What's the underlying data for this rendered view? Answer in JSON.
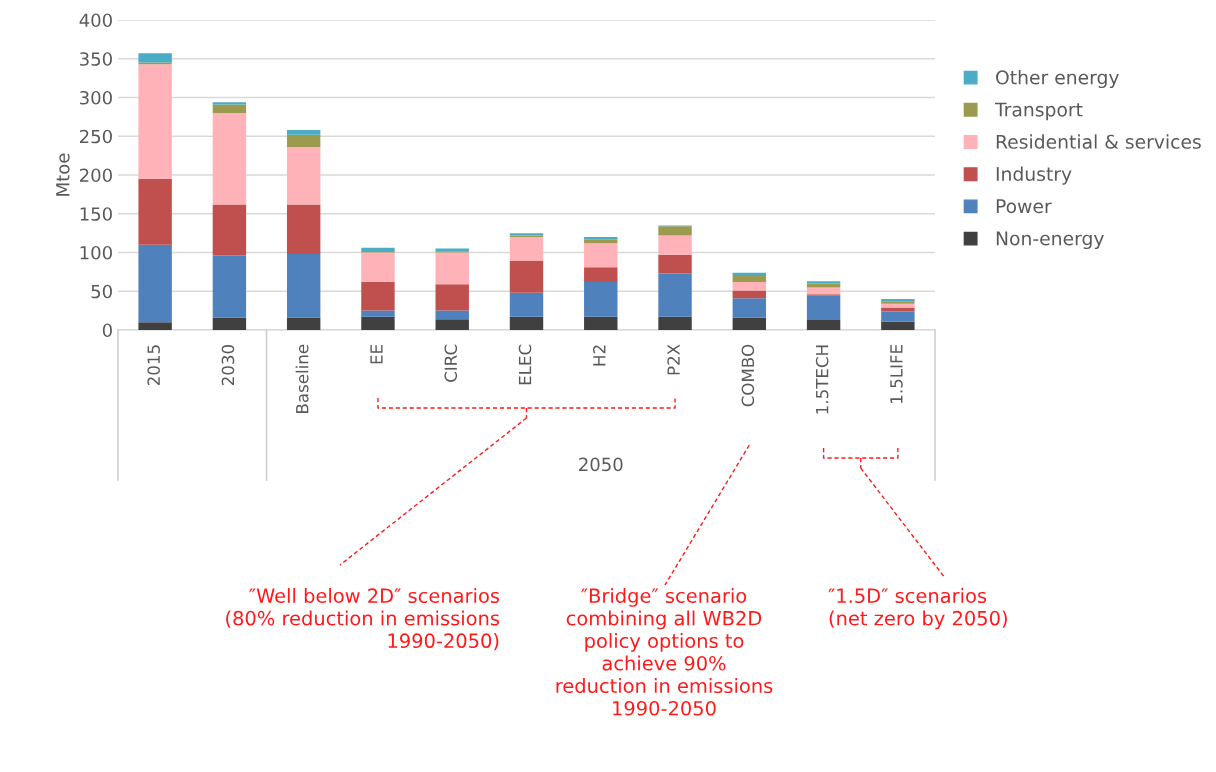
{
  "chart_data": {
    "type": "bar",
    "stacked": true,
    "ylabel": "Mtoe",
    "categories": [
      "2015",
      "2030",
      "Baseline",
      "EE",
      "CIRC",
      "ELEC",
      "H2",
      "P2X",
      "COMBO",
      "1.5TECH",
      "1.5LIFE"
    ],
    "series": [
      {
        "name": "Non-energy",
        "color": "#404040",
        "values": [
          10,
          16,
          16,
          17,
          14,
          17,
          17,
          17,
          16,
          13,
          11
        ]
      },
      {
        "name": "Power",
        "color": "#4f81bd",
        "values": [
          100,
          80,
          82,
          8,
          11,
          31,
          45,
          56,
          25,
          32,
          13
        ]
      },
      {
        "name": "Industry",
        "color": "#c0504d",
        "values": [
          85,
          66,
          64,
          37,
          34,
          41,
          19,
          24,
          10,
          1,
          5
        ]
      },
      {
        "name": "Residential & services",
        "color": "#ffb3b8",
        "values": [
          148,
          118,
          74,
          38,
          41,
          31,
          31,
          25,
          11,
          9,
          5
        ]
      },
      {
        "name": "Transport",
        "color": "#9c9a4e",
        "values": [
          2,
          11,
          16,
          2,
          1,
          2,
          5,
          12,
          9,
          5,
          3
        ]
      },
      {
        "name": "Other energy",
        "color": "#4bacc6",
        "values": [
          12,
          3,
          6,
          4,
          4,
          3,
          3,
          1,
          3,
          3,
          3
        ]
      }
    ],
    "ylim": [
      0,
      400
    ],
    "yticks": [
      0,
      50,
      100,
      150,
      200,
      250,
      300,
      350,
      400
    ],
    "grid": "y",
    "legend": "right",
    "annotations": [
      "2050",
      "″Well below 2D″ scenarios\n(80% reduction in emissions\n1990-2050)",
      "″Bridge″ scenario\ncombining all WB2D\npolicy options to\nachieve 90%\nreduction in emissions\n1990-2050",
      "″1.5D″ scenarios\n(net zero by 2050)"
    ]
  }
}
